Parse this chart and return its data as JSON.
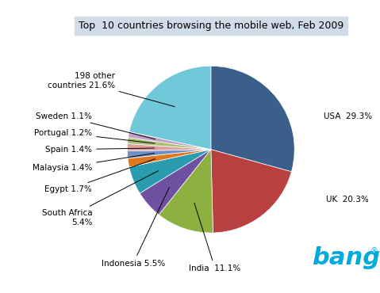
{
  "title": "Top  10 countries browsing the mobile web, Feb 2009",
  "slices": [
    {
      "label": "USA  29.3%",
      "value": 29.3,
      "color": "#3A5F8A"
    },
    {
      "label": "UK  20.3%",
      "value": 20.3,
      "color": "#B94040"
    },
    {
      "label": "India  11.1%",
      "value": 11.1,
      "color": "#8DB040"
    },
    {
      "label": "Indonesia 5.5%",
      "value": 5.5,
      "color": "#7050A0"
    },
    {
      "label": "South Africa\n5.4%",
      "value": 5.4,
      "color": "#2B9BB0"
    },
    {
      "label": "Egypt 1.7%",
      "value": 1.7,
      "color": "#E07820"
    },
    {
      "label": "Malaysia 1.4%",
      "value": 1.4,
      "color": "#7090C8"
    },
    {
      "label": "Spain 1.4%",
      "value": 1.4,
      "color": "#E0A0A0"
    },
    {
      "label": "Portugal 1.2%",
      "value": 1.2,
      "color": "#A8C070"
    },
    {
      "label": "Sweden 1.1%",
      "value": 1.1,
      "color": "#C0A0C8"
    },
    {
      "label": "198 other\ncountries 21.6%",
      "value": 21.6,
      "color": "#70C8D8"
    }
  ],
  "bango_color": "#00AADD",
  "title_bg": "#D0DCE8",
  "figsize": [
    4.79,
    3.7
  ],
  "dpi": 100
}
